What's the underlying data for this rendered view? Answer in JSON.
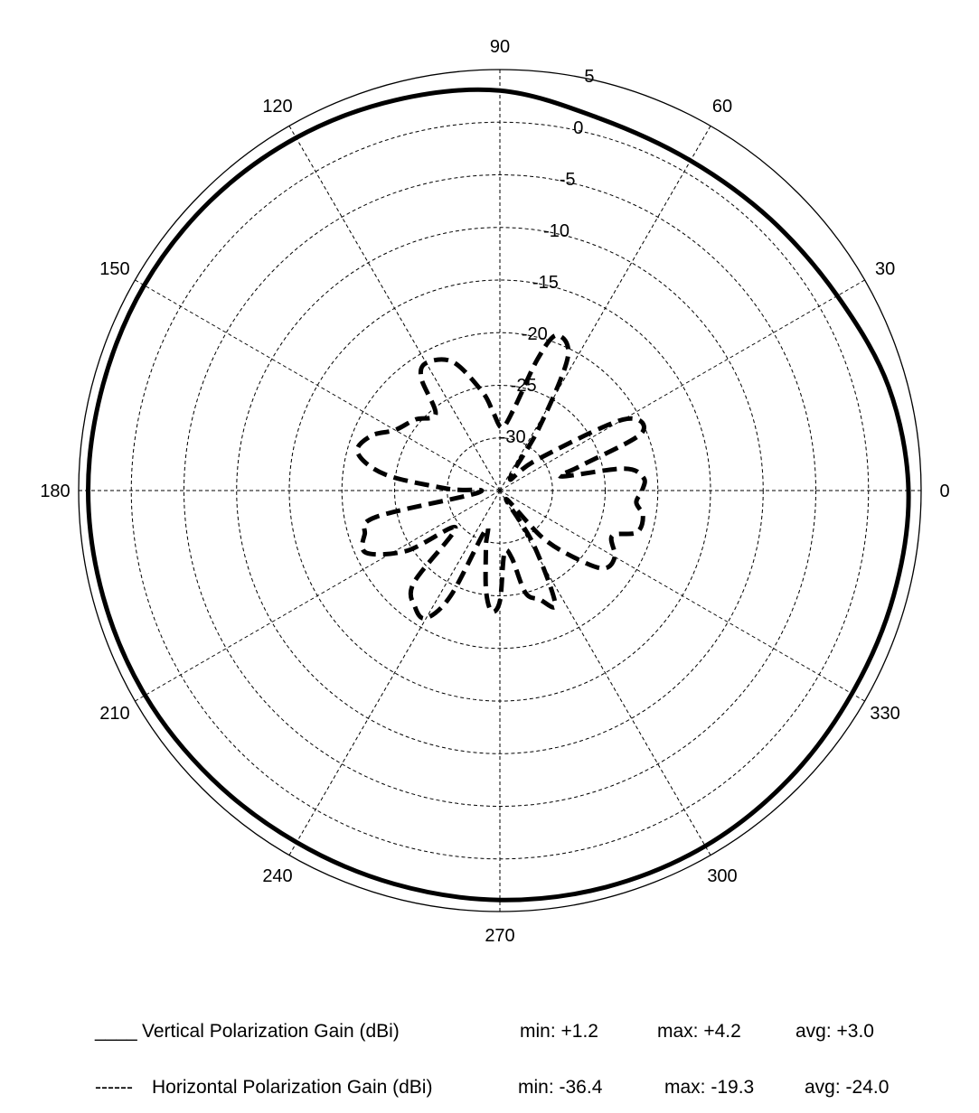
{
  "chart_data": {
    "type": "polar",
    "radial_scale_dbi": [
      -30,
      -25,
      -20,
      -15,
      -10,
      -5,
      0,
      5
    ],
    "radial_tick_labels": [
      "-30",
      "-25",
      "-20",
      "-15",
      "-10",
      "-5",
      "0",
      "5"
    ],
    "radial_range_dbi": [
      -35,
      5
    ],
    "angle_tick_labels": [
      "0",
      "30",
      "60",
      "90",
      "120",
      "150",
      "180",
      "210",
      "240",
      "270",
      "300",
      "330"
    ],
    "angle_ticks_deg": [
      0,
      30,
      60,
      90,
      120,
      150,
      180,
      210,
      240,
      270,
      300,
      330
    ],
    "grid": true,
    "angle_unit": "degrees",
    "series": [
      {
        "name": "Vertical Polarization Gain (dBi)",
        "line_style": "solid",
        "color": "#000000",
        "angles_deg": [
          0,
          15,
          30,
          45,
          60,
          75,
          90,
          105,
          120,
          135,
          150,
          165,
          180,
          195,
          210,
          225,
          240,
          255,
          270,
          285,
          300,
          315,
          330,
          345
        ],
        "gain_dbi": [
          3.8,
          3.2,
          2.0,
          1.4,
          1.2,
          1.6,
          3.0,
          3.4,
          3.7,
          3.9,
          4.0,
          4.0,
          4.1,
          4.0,
          3.9,
          3.7,
          3.6,
          3.7,
          3.9,
          4.0,
          4.0,
          3.8,
          3.6,
          3.7
        ]
      },
      {
        "name": "Horizontal Polarization Gain (dBi)",
        "line_style": "dashed",
        "color": "#000000",
        "angles_deg": [
          0,
          5,
          10,
          13,
          17,
          22,
          30,
          40,
          50,
          58,
          63,
          70,
          74,
          80,
          88,
          95,
          100,
          110,
          120,
          125,
          130,
          140,
          150,
          157,
          165,
          172,
          178,
          185,
          192,
          198,
          205,
          213,
          220,
          227,
          234,
          240,
          245,
          250,
          256,
          262,
          266,
          270,
          274,
          280,
          284,
          290,
          296,
          302,
          306,
          312,
          318,
          323,
          330,
          338,
          343,
          350,
          355
        ],
        "gain_dbi": [
          -21.5,
          -21.3,
          -23.0,
          -29.0,
          -27.0,
          -20.5,
          -21.5,
          -30.5,
          -33.5,
          -28.0,
          -20.8,
          -19.3,
          -22.0,
          -27.0,
          -29.0,
          -27.5,
          -25.5,
          -22.0,
          -21.0,
          -22.0,
          -25.5,
          -24.5,
          -23.5,
          -21.7,
          -21.0,
          -24.0,
          -30.0,
          -33.0,
          -23.0,
          -21.5,
          -21.0,
          -24.5,
          -29.5,
          -23.0,
          -21.3,
          -21.0,
          -24.0,
          -31.0,
          -29.5,
          -25.5,
          -23.5,
          -24.5,
          -29.0,
          -28.5,
          -25.0,
          -24.0,
          -23.0,
          -29.0,
          -34.0,
          -29.0,
          -25.5,
          -22.7,
          -22.4,
          -23.5,
          -21.4,
          -21.2,
          -22.0
        ]
      }
    ]
  },
  "legend": {
    "vertical": {
      "prefix": "____",
      "label": "Vertical Polarization Gain (dBi)",
      "min": "min: +1.2",
      "max": "max: +4.2",
      "avg": "avg: +3.0"
    },
    "horizontal": {
      "prefix": "------",
      "label": "Horizontal Polarization Gain (dBi)",
      "min": "min: -36.4",
      "max": "max: -19.3",
      "avg": "avg: -24.0"
    }
  }
}
